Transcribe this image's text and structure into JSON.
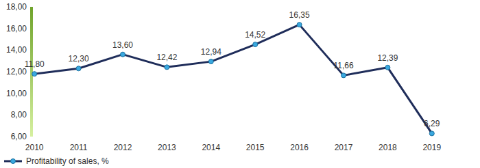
{
  "chart_data": {
    "type": "line",
    "categories": [
      "2010",
      "2011",
      "2012",
      "2013",
      "2014",
      "2015",
      "2016",
      "2017",
      "2018",
      "2019"
    ],
    "series": [
      {
        "name": "Profitability of sales, %",
        "color": "#1f2d5a",
        "marker": "circle",
        "values": [
          11.8,
          12.3,
          13.6,
          12.42,
          12.94,
          14.52,
          16.35,
          11.66,
          12.39,
          6.29
        ],
        "value_labels": [
          "11,80",
          "12,30",
          "13,60",
          "12,42",
          "12,94",
          "14,52",
          "16,35",
          "11,66",
          "12,39",
          "6,29"
        ]
      }
    ],
    "ylim": [
      6,
      18
    ],
    "yticks": [
      {
        "value": 6,
        "label": "6,00"
      },
      {
        "value": 8,
        "label": "8,00"
      },
      {
        "value": 10,
        "label": "10,00"
      },
      {
        "value": 12,
        "label": "12,00"
      },
      {
        "value": 14,
        "label": "14,00"
      },
      {
        "value": 16,
        "label": "16,00"
      },
      {
        "value": 18,
        "label": "18,00"
      }
    ],
    "grid": false,
    "legend": "bottom",
    "data_labels": true
  }
}
